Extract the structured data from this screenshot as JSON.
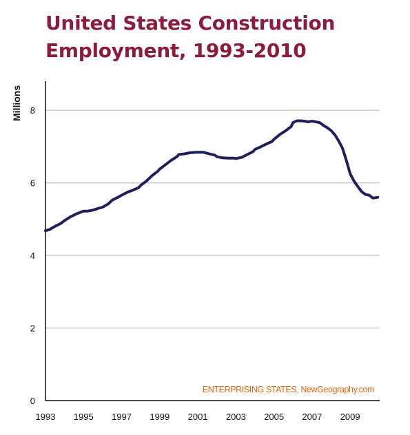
{
  "chart_data": {
    "type": "line",
    "title_lines": [
      "United States Construction",
      "Employment, 1993-2010"
    ],
    "ylabel": "Millions",
    "xlabel": "",
    "credit": "ENTERPRISING STATES, NewGeography.com",
    "ylim": [
      0,
      8.8
    ],
    "xlim": [
      1993,
      2010.55
    ],
    "yticks": [
      0,
      2,
      4,
      6,
      8
    ],
    "xticks": [
      "1993",
      "1995",
      "1997",
      "1999",
      "2001",
      "2003",
      "2005",
      "2007",
      "2009"
    ],
    "grid": true,
    "colors": {
      "line": "#1f1f5c",
      "title": "#8b1c3a",
      "credit": "#e8650e",
      "grid": "#c8c8c8"
    },
    "series": [
      {
        "x": [
          1993.0,
          1993.2,
          1993.5,
          1993.8,
          1994.0,
          1994.3,
          1994.6,
          1994.9,
          1995.0,
          1995.2,
          1995.5,
          1995.8,
          1996.0,
          1996.3,
          1996.5,
          1996.8,
          1997.0,
          1997.3,
          1997.6,
          1997.9,
          1998.0,
          1998.3,
          1998.6,
          1998.9,
          1999.0,
          1999.3,
          1999.6,
          1999.9,
          2000.0,
          2000.3,
          2000.6,
          2000.9,
          2001.0,
          2001.3,
          2001.6,
          2001.9,
          2002.0,
          2002.3,
          2002.6,
          2002.9,
          2003.0,
          2003.3,
          2003.6,
          2003.9,
          2004.0,
          2004.3,
          2004.6,
          2004.9,
          2005.0,
          2005.3,
          2005.6,
          2005.9,
          2006.0,
          2006.2,
          2006.4,
          2006.6,
          2006.8,
          2007.0,
          2007.2,
          2007.4,
          2007.6,
          2007.8,
          2008.0,
          2008.2,
          2008.4,
          2008.6,
          2008.8,
          2009.0,
          2009.2,
          2009.4,
          2009.6,
          2009.8,
          2010.0,
          2010.2,
          2010.45
        ],
        "values": [
          4.68,
          4.71,
          4.8,
          4.88,
          4.96,
          5.06,
          5.14,
          5.2,
          5.22,
          5.22,
          5.25,
          5.3,
          5.33,
          5.42,
          5.52,
          5.6,
          5.66,
          5.74,
          5.8,
          5.87,
          5.93,
          6.05,
          6.2,
          6.32,
          6.38,
          6.5,
          6.62,
          6.72,
          6.78,
          6.8,
          6.83,
          6.84,
          6.84,
          6.84,
          6.8,
          6.76,
          6.72,
          6.69,
          6.68,
          6.68,
          6.67,
          6.7,
          6.78,
          6.86,
          6.92,
          6.99,
          7.07,
          7.14,
          7.2,
          7.33,
          7.43,
          7.55,
          7.66,
          7.71,
          7.71,
          7.7,
          7.68,
          7.7,
          7.68,
          7.66,
          7.58,
          7.52,
          7.44,
          7.32,
          7.15,
          6.95,
          6.62,
          6.25,
          6.05,
          5.9,
          5.76,
          5.68,
          5.66,
          5.58,
          5.6
        ]
      }
    ]
  }
}
